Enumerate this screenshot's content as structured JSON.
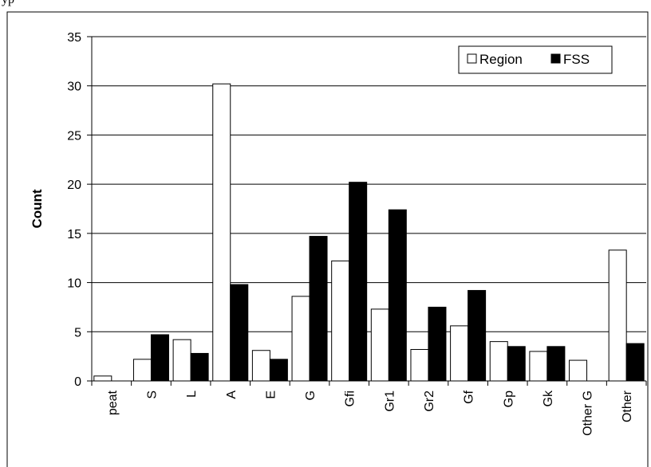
{
  "header_fragment": "yp",
  "chart_data": {
    "type": "bar",
    "ylabel": "Count",
    "xlabel": "",
    "ylim": [
      0,
      35
    ],
    "yticks": [
      0,
      5,
      10,
      15,
      20,
      25,
      30,
      35
    ],
    "grid": true,
    "legend_position": "top-right",
    "categories": [
      "peat",
      "S",
      "L",
      "A",
      "E",
      "G",
      "Gfi",
      "Gr1",
      "Gr2",
      "Gf",
      "Gp",
      "Gk",
      "Other G",
      "Other"
    ],
    "series": [
      {
        "name": "Region",
        "color": "#ffffff",
        "values": [
          0.5,
          2.2,
          4.2,
          30.2,
          3.1,
          8.6,
          12.2,
          7.3,
          3.2,
          5.6,
          4.0,
          3.0,
          2.1,
          13.3
        ]
      },
      {
        "name": "FSS",
        "color": "#000000",
        "values": [
          0,
          4.7,
          2.8,
          9.8,
          2.2,
          14.7,
          20.2,
          17.4,
          7.5,
          9.2,
          3.5,
          3.5,
          0,
          3.8
        ]
      }
    ]
  }
}
